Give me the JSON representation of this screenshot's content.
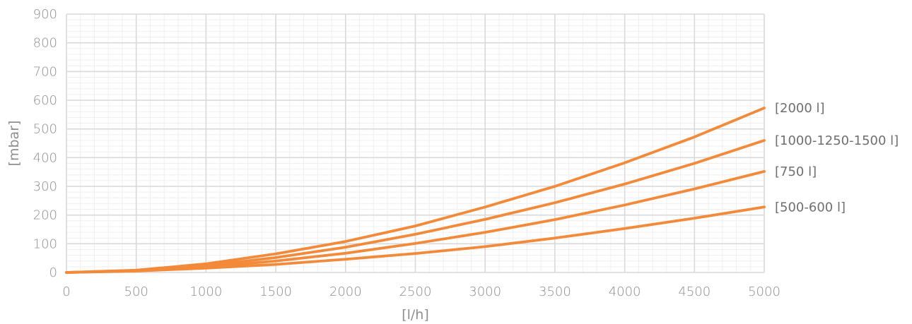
{
  "chart_data": {
    "type": "line",
    "xlabel": "[l/h]",
    "ylabel": "[mbar]",
    "xlim": [
      0,
      5000
    ],
    "ylim": [
      0,
      900
    ],
    "xticks": [
      "0",
      "500",
      "1000",
      "1500",
      "2000",
      "2500",
      "3000",
      "3500",
      "4000",
      "4500",
      "5000"
    ],
    "yticks": [
      "0",
      "100",
      "200",
      "300",
      "400",
      "500",
      "600",
      "700",
      "800",
      "900"
    ],
    "grid": true,
    "x": [
      0,
      500,
      1000,
      1500,
      2000,
      2500,
      3000,
      3500,
      4000,
      4500,
      5000
    ],
    "series": [
      {
        "name": "[2000 l]",
        "values": [
          0,
          8,
          30,
          65,
          108,
          162,
          228,
          300,
          382,
          472,
          573
        ]
      },
      {
        "name": "[1000-1250-1500 l]",
        "values": [
          0,
          7,
          24,
          52,
          88,
          133,
          185,
          243,
          308,
          380,
          460
        ]
      },
      {
        "name": "[750 l]",
        "values": [
          0,
          6,
          19,
          40,
          67,
          101,
          140,
          184,
          235,
          291,
          352
        ]
      },
      {
        "name": "[500-600 l]",
        "values": [
          0,
          5,
          15,
          28,
          46,
          66,
          90,
          120,
          153,
          189,
          228
        ]
      }
    ],
    "line_color": "#f28a3a"
  }
}
